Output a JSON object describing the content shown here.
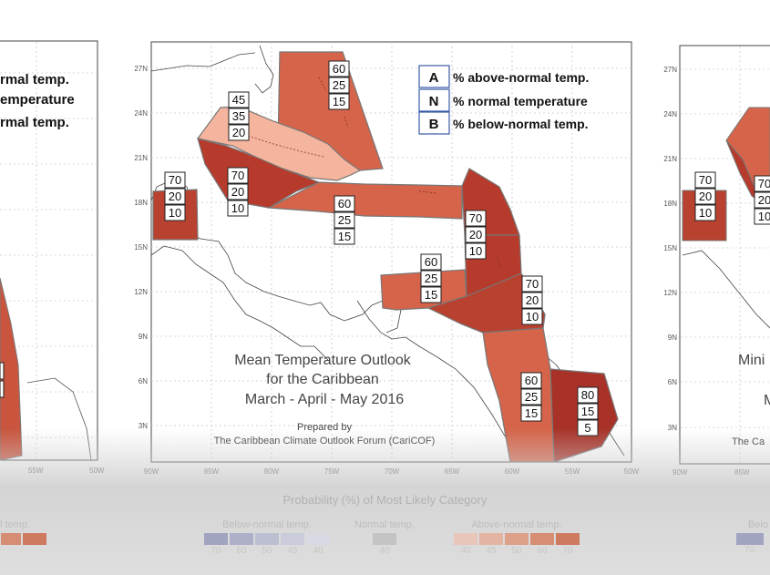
{
  "map": {
    "title_lines": [
      "Mean Temperature Outlook",
      "for the Caribbean",
      "March - April - May 2016"
    ],
    "prepared_by": "Prepared by",
    "organization": "The Caribbean Climate Outlook Forum (CariCOF)",
    "lat_labels": [
      "27N",
      "24N",
      "21N",
      "18N",
      "15N",
      "12N",
      "9N",
      "6N",
      "3N"
    ],
    "lon_labels": [
      "90W",
      "85W",
      "80W",
      "75W",
      "70W",
      "65W",
      "60W",
      "55W",
      "50W"
    ]
  },
  "key": [
    {
      "letter": "A",
      "text": "% above-normal temp."
    },
    {
      "letter": "N",
      "text": "% normal temperature"
    },
    {
      "letter": "B",
      "text": "% below-normal temp."
    }
  ],
  "regions": [
    {
      "name": "belize",
      "values": [
        "70",
        "20",
        "10"
      ],
      "color": "#b8412f"
    },
    {
      "name": "cuba",
      "values": [
        "45",
        "35",
        "20"
      ],
      "color": "#f4b49d"
    },
    {
      "name": "jamaica",
      "values": [
        "70",
        "20",
        "10"
      ],
      "color": "#b63b2c"
    },
    {
      "name": "bahamas",
      "values": [
        "60",
        "25",
        "15"
      ],
      "color": "#d5644a"
    },
    {
      "name": "hispaniola-pr",
      "values": [
        "60",
        "25",
        "15"
      ],
      "color": "#d5644a"
    },
    {
      "name": "leeward",
      "values": [
        "70",
        "20",
        "10"
      ],
      "color": "#b63b2c"
    },
    {
      "name": "abc-islands",
      "values": [
        "60",
        "25",
        "15"
      ],
      "color": "#d5644a"
    },
    {
      "name": "windward",
      "values": [
        "70",
        "20",
        "10"
      ],
      "color": "#b63b2c"
    },
    {
      "name": "guyana",
      "values": [
        "60",
        "25",
        "15"
      ],
      "color": "#d5644a"
    },
    {
      "name": "french-guiana",
      "values": [
        "80",
        "15",
        "5"
      ],
      "color": "#a83228"
    }
  ],
  "left_panel": {
    "key_text": [
      "rmal temp.",
      "emperature",
      "rmal temp."
    ],
    "lon_label": "55W",
    "lon_label2": "50W"
  },
  "right_panel": {
    "lat_labels": [
      "27N",
      "24N",
      "21N",
      "18N",
      "15N",
      "12N",
      "9N",
      "6N",
      "3N"
    ],
    "lon_labels": [
      "90W",
      "85W"
    ],
    "boxes": [
      [
        "70",
        "20",
        "10"
      ],
      [
        "70",
        "20",
        "10"
      ]
    ],
    "partial_text": [
      "Mini",
      "M",
      "The Ca"
    ]
  },
  "legend": {
    "title": "Probability (%) of Most Likely Category",
    "left_partial": "l temp.",
    "groups": [
      {
        "name": "Below-normal temp.",
        "ticks": [
          "70",
          "60",
          "50",
          "45",
          "40"
        ],
        "colors": [
          "#a0a4bf",
          "#adb0c8",
          "#bcbfd2",
          "#cacbdb",
          "#d9d9e4"
        ]
      },
      {
        "name": "Normal temp.",
        "ticks": [
          "40"
        ],
        "colors": [
          "#c4c4c4"
        ]
      },
      {
        "name": "Above-normal temp.",
        "ticks": [
          "40",
          "45",
          "50",
          "60",
          "70"
        ],
        "colors": [
          "#e8c6b9",
          "#e3b4a1",
          "#dda089",
          "#d58d73",
          "#cd7a5f"
        ]
      }
    ],
    "right_partial": "Belo",
    "right_tick": "70"
  }
}
